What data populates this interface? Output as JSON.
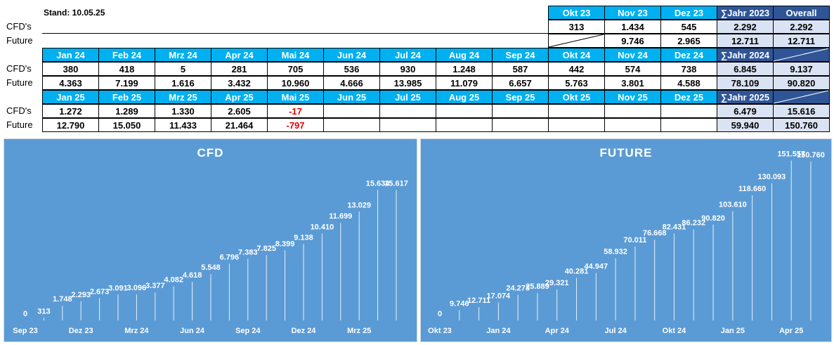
{
  "stand": "Stand: 10.05.25",
  "row_labels": {
    "cfd": "CFD's",
    "future": "Future"
  },
  "colors": {
    "header": "#00b0f0",
    "sum_header": "#2f5597",
    "sum_cell": "#dae3f3",
    "negative": "#e00000",
    "chart_bg": "#5b9bd5"
  },
  "year2023": {
    "headers": [
      "Okt 23",
      "Nov 23",
      "Dez 23"
    ],
    "sum_header": "∑Jahr 2023",
    "overall_header": "Overall",
    "cfd": [
      "313",
      "1.434",
      "545"
    ],
    "future": [
      "",
      "9.746",
      "2.965"
    ],
    "sum_cfd": "2.292",
    "sum_future": "12.711",
    "overall_cfd": "2.292",
    "overall_future": "12.711"
  },
  "year2024": {
    "headers": [
      "Jan 24",
      "Feb 24",
      "Mrz 24",
      "Apr 24",
      "Mai 24",
      "Jun 24",
      "Jul 24",
      "Aug 24",
      "Sep 24",
      "Okt 24",
      "Nov 24",
      "Dez 24"
    ],
    "sum_header": "∑Jahr 2024",
    "cfd": [
      "380",
      "418",
      "5",
      "281",
      "705",
      "536",
      "930",
      "1.248",
      "587",
      "442",
      "574",
      "738"
    ],
    "future": [
      "4.363",
      "7.199",
      "1.616",
      "3.432",
      "10.960",
      "4.666",
      "13.985",
      "11.079",
      "6.657",
      "5.763",
      "3.801",
      "4.588"
    ],
    "sum_cfd": "6.845",
    "sum_future": "78.109",
    "overall_cfd": "9.137",
    "overall_future": "90.820"
  },
  "year2025": {
    "headers": [
      "Jan 25",
      "Feb 25",
      "Mrz 25",
      "Apr 25",
      "Mai 25",
      "Jun 25",
      "Jul 25",
      "Aug 25",
      "Sep 25",
      "Okt 25",
      "Nov 25",
      "Dez 25"
    ],
    "sum_header": "∑Jahr 2025",
    "cfd": [
      "1.272",
      "1.289",
      "1.330",
      "2.605",
      "-17",
      "",
      "",
      "",
      "",
      "",
      "",
      ""
    ],
    "future": [
      "12.790",
      "15.050",
      "11.433",
      "21.464",
      "-797",
      "",
      "",
      "",
      "",
      "",
      "",
      ""
    ],
    "sum_cfd": "6.479",
    "sum_future": "59.940",
    "overall_cfd": "15.616",
    "overall_future": "150.760"
  },
  "chart_data": [
    {
      "type": "line",
      "title": "CFD",
      "x": [
        "Sep 23",
        "Okt 23",
        "Nov 23",
        "Dez 23",
        "Jan 24",
        "Feb 24",
        "Mrz 24",
        "Apr 24",
        "Mai 24",
        "Jun 24",
        "Jul 24",
        "Aug 24",
        "Sep 24",
        "Okt 24",
        "Nov 24",
        "Dez 24",
        "Jan 25",
        "Feb 25",
        "Mrz 25",
        "Apr 25",
        "Mai 25"
      ],
      "values": [
        0,
        313,
        1748,
        2293,
        2673,
        3091,
        3096,
        3377,
        4082,
        4618,
        5548,
        6796,
        7383,
        7825,
        8399,
        9138,
        10410,
        11699,
        13029,
        15634,
        15617
      ],
      "tick_labels": [
        "Sep 23",
        "Dez 23",
        "Mrz 24",
        "Jun 24",
        "Sep 24",
        "Dez 24",
        "Mrz 25"
      ],
      "ylim": [
        0,
        16000
      ],
      "grid": false,
      "legend": "none"
    },
    {
      "type": "line",
      "title": "FUTURE",
      "x": [
        "Okt 23",
        "Nov 23",
        "Dez 23",
        "Jan 24",
        "Feb 24",
        "Mrz 24",
        "Apr 24",
        "Mai 24",
        "Jun 24",
        "Jul 24",
        "Aug 24",
        "Sep 24",
        "Okt 24",
        "Nov 24",
        "Dez 24",
        "Jan 25",
        "Feb 25",
        "Mrz 25",
        "Apr 25",
        "Mai 25"
      ],
      "values": [
        0,
        9746,
        12711,
        17074,
        24273,
        25889,
        29321,
        40281,
        44947,
        58932,
        70011,
        76668,
        82431,
        86232,
        90820,
        103610,
        118660,
        130093,
        151557,
        150760
      ],
      "tick_labels": [
        "Okt 23",
        "Jan 24",
        "Apr 24",
        "Jul 24",
        "Okt 24",
        "Jan 25",
        "Apr 25"
      ],
      "ylim": [
        0,
        160000
      ],
      "grid": false,
      "legend": "none"
    }
  ]
}
